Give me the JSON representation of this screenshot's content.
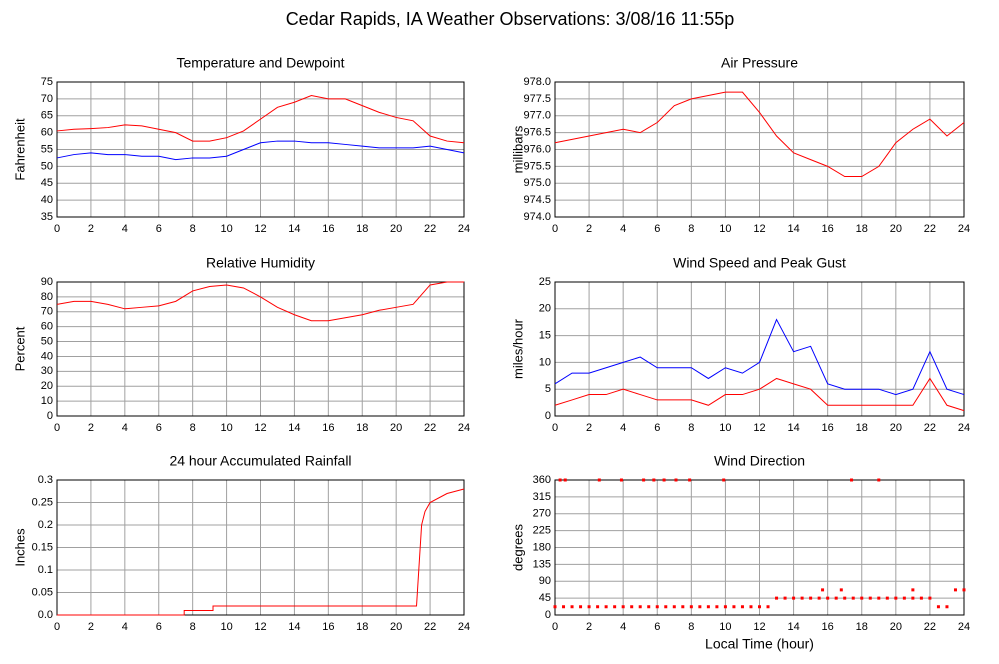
{
  "title": "Cedar Rapids, IA Weather Observations: 3/08/16 11:55p",
  "chart_data": [
    {
      "type": "line",
      "title": "Temperature and Dewpoint",
      "ylabel": "Fahrenheit",
      "x": [
        0,
        1,
        2,
        3,
        4,
        5,
        6,
        7,
        8,
        9,
        10,
        11,
        12,
        13,
        14,
        15,
        16,
        17,
        18,
        19,
        20,
        21,
        22,
        23,
        24
      ],
      "series": [
        {
          "color": "#ff0000",
          "values": [
            60.5,
            61,
            61.2,
            61.5,
            62.3,
            62,
            61,
            60,
            57.5,
            57.5,
            58.5,
            60.5,
            64,
            67.5,
            69,
            71,
            70,
            70,
            68,
            66,
            64.5,
            63.5,
            59,
            57.5,
            57
          ]
        },
        {
          "color": "#0000ff",
          "values": [
            52.5,
            53.5,
            54,
            53.5,
            53.5,
            53,
            53,
            52,
            52.5,
            52.5,
            53,
            55,
            57,
            57.5,
            57.5,
            57,
            57,
            56.5,
            56,
            55.5,
            55.5,
            55.5,
            56,
            55,
            54
          ]
        }
      ],
      "xlim": [
        0,
        24
      ],
      "xticks": [
        0,
        2,
        4,
        6,
        8,
        10,
        12,
        14,
        16,
        18,
        20,
        22,
        24
      ],
      "ylim": [
        35,
        75
      ],
      "yticks": [
        35,
        40,
        45,
        50,
        55,
        60,
        65,
        70,
        75
      ],
      "grid": true
    },
    {
      "type": "line",
      "title": "Air Pressure",
      "ylabel": "millibars",
      "x": [
        0,
        1,
        2,
        3,
        4,
        5,
        6,
        7,
        8,
        9,
        10,
        11,
        12,
        13,
        14,
        15,
        16,
        17,
        18,
        19,
        20,
        21,
        22,
        23,
        24
      ],
      "series": [
        {
          "color": "#ff0000",
          "values": [
            976.2,
            976.3,
            976.4,
            976.5,
            976.6,
            976.5,
            976.8,
            977.3,
            977.5,
            977.6,
            977.7,
            977.7,
            977.1,
            976.4,
            975.9,
            975.7,
            975.5,
            975.2,
            975.2,
            975.5,
            976.2,
            976.6,
            976.9,
            976.4,
            976.8
          ]
        }
      ],
      "xlim": [
        0,
        24
      ],
      "xticks": [
        0,
        2,
        4,
        6,
        8,
        10,
        12,
        14,
        16,
        18,
        20,
        22,
        24
      ],
      "ylim": [
        974,
        978
      ],
      "yticks": [
        {
          "value": 974,
          "label": "974.0"
        },
        975.5,
        {
          "value": 975,
          "label": "975.0"
        },
        974.5,
        {
          "value": 976,
          "label": "976.0"
        },
        976.5,
        {
          "value": 977,
          "label": "977.0"
        },
        977.5,
        {
          "value": 978,
          "label": "978.0"
        }
      ],
      "grid": true
    },
    {
      "type": "line",
      "title": "Relative Humidity",
      "ylabel": "Percent",
      "x": [
        0,
        1,
        2,
        3,
        4,
        5,
        6,
        7,
        8,
        9,
        10,
        11,
        12,
        13,
        14,
        15,
        16,
        17,
        18,
        19,
        20,
        21,
        22,
        23,
        24
      ],
      "series": [
        {
          "color": "#ff0000",
          "values": [
            75,
            77,
            77,
            75,
            72,
            73,
            74,
            77,
            84,
            87,
            88,
            86,
            80,
            73,
            68,
            64,
            64,
            66,
            68,
            71,
            73,
            75,
            88,
            90,
            90
          ]
        }
      ],
      "xlim": [
        0,
        24
      ],
      "xticks": [
        0,
        2,
        4,
        6,
        8,
        10,
        12,
        14,
        16,
        18,
        20,
        22,
        24
      ],
      "ylim": [
        0,
        90
      ],
      "yticks": [
        0,
        10,
        20,
        30,
        40,
        50,
        60,
        70,
        80,
        90
      ],
      "grid": true
    },
    {
      "type": "line",
      "title": "Wind Speed and Peak Gust",
      "ylabel": "miles/hour",
      "x": [
        0,
        1,
        2,
        3,
        4,
        5,
        6,
        7,
        8,
        9,
        10,
        11,
        12,
        13,
        14,
        15,
        16,
        17,
        18,
        19,
        20,
        21,
        22,
        23,
        24
      ],
      "series": [
        {
          "color": "#0000ff",
          "values": [
            6,
            8,
            8,
            9,
            10,
            11,
            9,
            9,
            9,
            7,
            9,
            8,
            10,
            18,
            12,
            13,
            6,
            5,
            5,
            5,
            4,
            5,
            12,
            5,
            4
          ]
        },
        {
          "color": "#ff0000",
          "values": [
            2,
            3,
            4,
            4,
            5,
            4,
            3,
            3,
            3,
            2,
            4,
            4,
            5,
            7,
            6,
            5,
            2,
            2,
            2,
            2,
            2,
            2,
            7,
            2,
            1
          ]
        }
      ],
      "xlim": [
        0,
        24
      ],
      "xticks": [
        0,
        2,
        4,
        6,
        8,
        10,
        12,
        14,
        16,
        18,
        20,
        22,
        24
      ],
      "ylim": [
        0,
        25
      ],
      "yticks": [
        0,
        5,
        10,
        15,
        20,
        25
      ],
      "grid": true
    },
    {
      "type": "line",
      "title": "24 hour Accumulated Rainfall",
      "ylabel": "Inches",
      "x": [
        0,
        7.5,
        7.5,
        9.2,
        9.2,
        21.2,
        21.5,
        21.7,
        22,
        23,
        24
      ],
      "series": [
        {
          "color": "#ff0000",
          "values": [
            0,
            0,
            0.01,
            0.01,
            0.02,
            0.02,
            0.2,
            0.23,
            0.25,
            0.27,
            0.28
          ]
        }
      ],
      "xlim": [
        0,
        24
      ],
      "xticks": [
        0,
        2,
        4,
        6,
        8,
        10,
        12,
        14,
        16,
        18,
        20,
        22,
        24
      ],
      "ylim": [
        0,
        0.3
      ],
      "yticks": [
        {
          "value": 0,
          "label": "0.0"
        },
        0.05,
        0.1,
        0.15,
        0.2,
        0.25,
        0.3
      ],
      "grid": true
    },
    {
      "type": "scatter",
      "title": "Wind Direction",
      "ylabel": "degrees",
      "xlabel": "Local Time (hour)",
      "x": [
        0,
        0.5,
        1,
        1.5,
        2,
        2.5,
        3,
        3.5,
        4,
        4.5,
        5,
        5.5,
        6,
        6.5,
        7,
        7.5,
        8,
        8.5,
        9,
        9.5,
        10,
        10.5,
        11,
        11.5,
        12,
        12.5,
        13,
        13.5,
        14,
        14.5,
        15,
        15.5,
        16,
        16.5,
        17,
        17.5,
        18,
        18.5,
        19,
        19.5,
        20,
        20.5,
        21,
        21.5,
        22,
        22.5,
        23,
        23.5,
        24,
        0.3,
        0.6,
        2.6,
        3.9,
        5.2,
        5.8,
        6.4,
        7.1,
        7.9,
        9.9,
        17.4,
        19,
        15.7,
        16.8,
        21
      ],
      "series": [
        {
          "color": "#ff0000",
          "values": [
            22,
            22,
            22,
            22,
            22,
            22,
            22,
            22,
            22,
            22,
            22,
            22,
            22,
            22,
            22,
            22,
            22,
            22,
            22,
            22,
            22,
            22,
            22,
            22,
            22,
            22,
            45,
            45,
            45,
            45,
            45,
            45,
            45,
            45,
            45,
            45,
            45,
            45,
            45,
            45,
            45,
            45,
            45,
            45,
            45,
            22,
            22,
            67,
            67,
            360,
            360,
            360,
            360,
            360,
            360,
            360,
            360,
            360,
            360,
            360,
            360,
            67,
            67,
            67
          ]
        }
      ],
      "xlim": [
        0,
        24
      ],
      "xticks": [
        0,
        2,
        4,
        6,
        8,
        10,
        12,
        14,
        16,
        18,
        20,
        22,
        24
      ],
      "ylim": [
        0,
        360
      ],
      "yticks": [
        0,
        45,
        90,
        135,
        180,
        225,
        270,
        315,
        360
      ],
      "grid": true
    }
  ]
}
